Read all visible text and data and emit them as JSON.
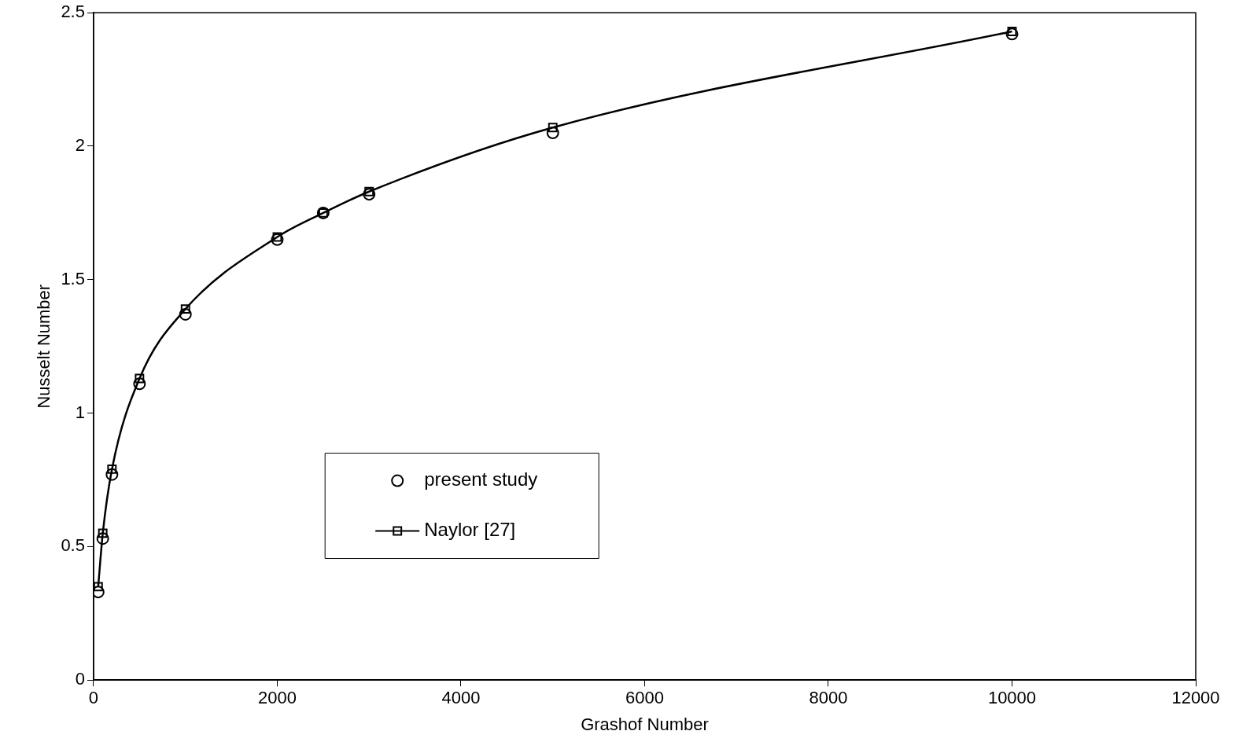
{
  "chart_data": {
    "type": "scatter",
    "xlabel": "Grashof Number",
    "ylabel": "Nusselt Number",
    "xlim": [
      0,
      12000
    ],
    "xticks": [
      0,
      2000,
      4000,
      6000,
      8000,
      10000,
      12000
    ],
    "ylim": [
      0,
      2.5
    ],
    "yticks": [
      0,
      0.5,
      1,
      1.5,
      2,
      2.5
    ],
    "grid": false,
    "legend": "center",
    "series": [
      {
        "name": "present study",
        "type": "scatter",
        "marker": "circle",
        "color": "#000000",
        "x": [
          50,
          100,
          200,
          500,
          1000,
          2000,
          2500,
          3000,
          5000,
          10000
        ],
        "values": [
          0.33,
          0.53,
          0.77,
          1.11,
          1.37,
          1.65,
          1.75,
          1.82,
          2.05,
          2.42
        ]
      },
      {
        "name": "Naylor [27]",
        "type": "line",
        "marker": "square",
        "line_style": "solid",
        "color": "#000000",
        "x": [
          50,
          100,
          200,
          500,
          1000,
          2000,
          2500,
          3000,
          5000,
          10000
        ],
        "values": [
          0.35,
          0.55,
          0.79,
          1.13,
          1.39,
          1.66,
          1.75,
          1.83,
          2.07,
          2.43
        ]
      }
    ]
  }
}
